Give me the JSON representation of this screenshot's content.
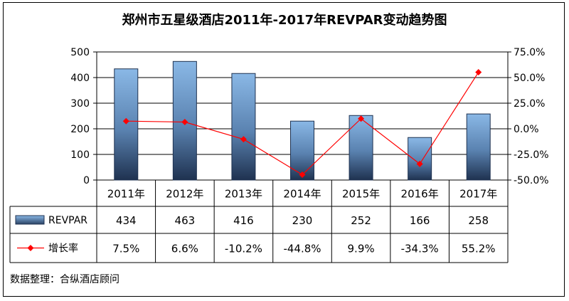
{
  "chart_data": {
    "type": "bar",
    "title": "郑州市五星级酒店2011年-2017年REVPAR变动趋势图",
    "categories": [
      "2011年",
      "2012年",
      "2013年",
      "2014年",
      "2015年",
      "2016年",
      "2017年"
    ],
    "series": [
      {
        "name": "REVPAR",
        "type": "bar",
        "axis": "left",
        "values": [
          434,
          463,
          416,
          230,
          252,
          166,
          258
        ],
        "labels": [
          "434",
          "463",
          "416",
          "230",
          "252",
          "166",
          "258"
        ],
        "color": "#6f9fd0"
      },
      {
        "name": "增长率",
        "type": "line",
        "axis": "right",
        "values": [
          7.5,
          6.6,
          -10.2,
          -44.8,
          9.9,
          -34.3,
          55.2
        ],
        "labels": [
          "7.5%",
          "6.6%",
          "-10.2%",
          "-44.8%",
          "9.9%",
          "-34.3%",
          "55.2%"
        ],
        "color": "#ff0000"
      }
    ],
    "y_left": {
      "ylim": [
        0,
        500
      ],
      "ticks": [
        "0",
        "100",
        "200",
        "300",
        "400",
        "500"
      ]
    },
    "y_right": {
      "ylim": [
        -50,
        75
      ],
      "ticks": [
        "-50.0%",
        "-25.0%",
        "0.0%",
        "25.0%",
        "50.0%",
        "75.0%"
      ]
    },
    "grid": true,
    "legend": "data-table"
  },
  "source_note": "数据整理：合纵酒店顾问"
}
